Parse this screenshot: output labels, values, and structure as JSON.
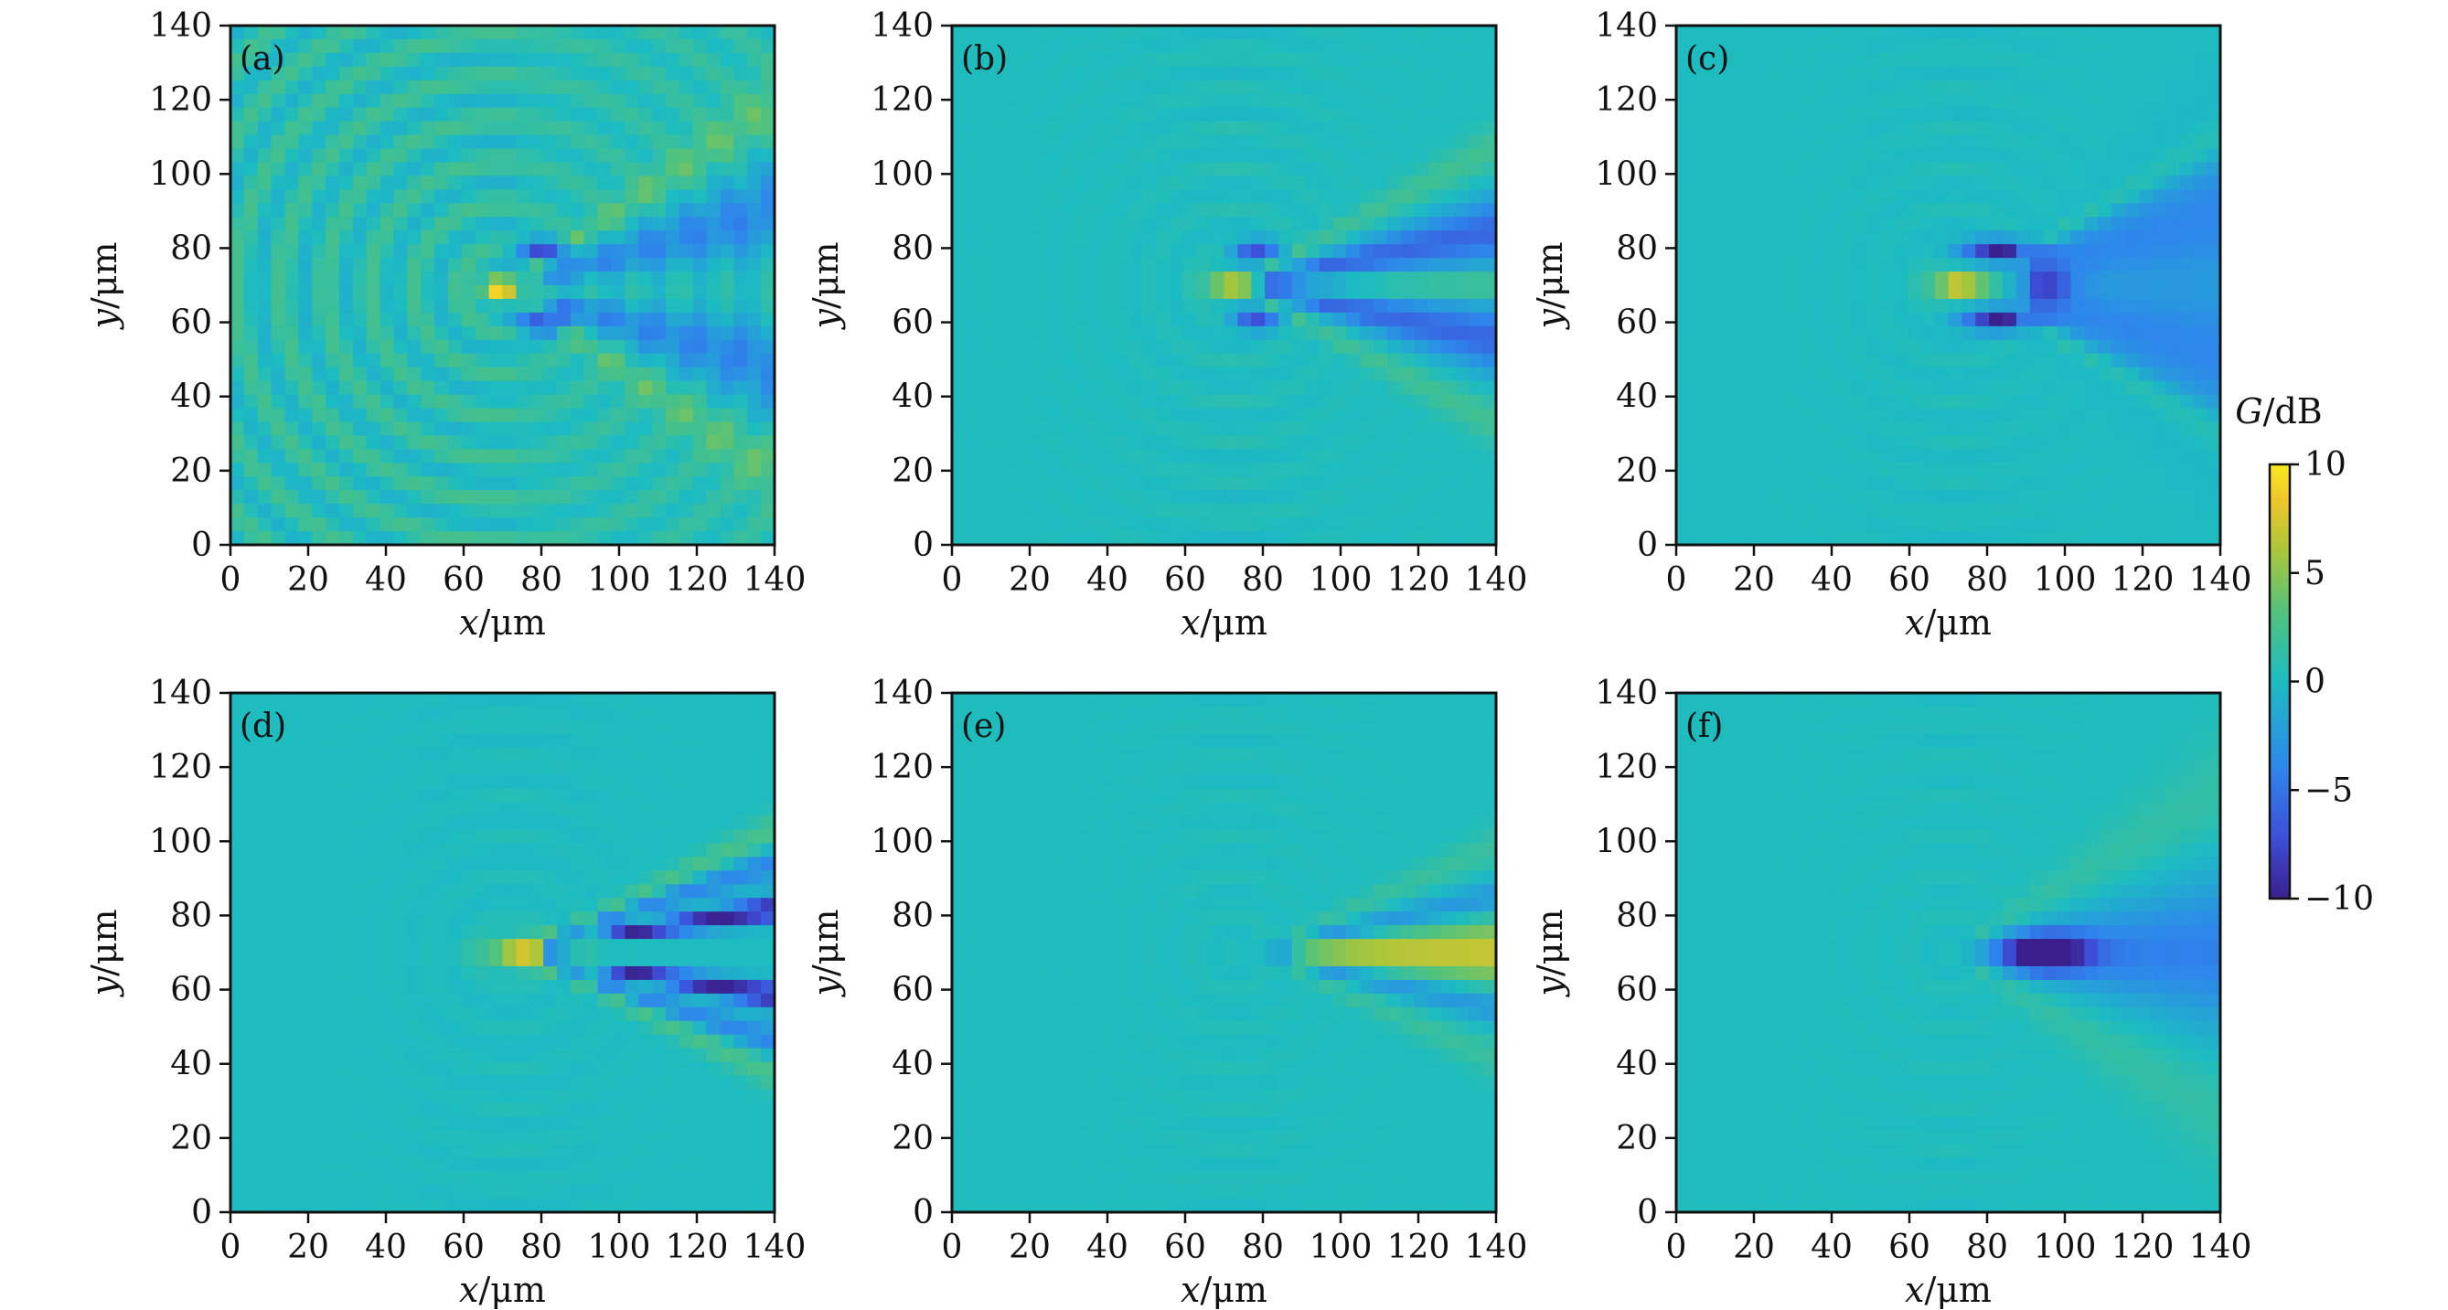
{
  "chart_data": [
    {
      "type": "heatmap",
      "panel_label": "(a)",
      "xlabel_var": "x",
      "xlabel_unit": "/μm",
      "ylabel_var": "y",
      "ylabel_unit": "/μm",
      "xlim": [
        0,
        140
      ],
      "ylim": [
        0,
        140
      ],
      "xticks": [
        "0",
        "20",
        "40",
        "60",
        "80",
        "100",
        "120",
        "140"
      ],
      "yticks": [
        "0",
        "20",
        "40",
        "60",
        "80",
        "100",
        "120",
        "140"
      ],
      "features": {
        "hot_spot": [
          68,
          69
        ],
        "hot_value_db": 8,
        "cold_lobes_db": -9,
        "fringes": "strong"
      }
    },
    {
      "type": "heatmap",
      "panel_label": "(b)",
      "xlabel_var": "x",
      "xlabel_unit": "/μm",
      "ylabel_var": "y",
      "ylabel_unit": "/μm",
      "xlim": [
        0,
        140
      ],
      "ylim": [
        0,
        140
      ],
      "xticks": [
        "0",
        "20",
        "40",
        "60",
        "80",
        "100",
        "120",
        "140"
      ],
      "yticks": [
        "0",
        "20",
        "40",
        "60",
        "80",
        "100",
        "120",
        "140"
      ],
      "features": {
        "hot_spot": [
          70,
          70
        ],
        "hot_value_db": 7,
        "cold_lobes_db": -8,
        "fringes": "weak"
      }
    },
    {
      "type": "heatmap",
      "panel_label": "(c)",
      "xlabel_var": "x",
      "xlabel_unit": "/μm",
      "ylabel_var": "y",
      "ylabel_unit": "/μm",
      "xlim": [
        0,
        140
      ],
      "ylim": [
        0,
        140
      ],
      "xticks": [
        "0",
        "20",
        "40",
        "60",
        "80",
        "100",
        "120",
        "140"
      ],
      "yticks": [
        "0",
        "20",
        "40",
        "60",
        "80",
        "100",
        "120",
        "140"
      ],
      "features": {
        "hot_spot": [
          73,
          70
        ],
        "hot_value_db": 8,
        "cold_lobes_db": -10,
        "fringes": "weak"
      }
    },
    {
      "type": "heatmap",
      "panel_label": "(d)",
      "xlabel_var": "x",
      "xlabel_unit": "/μm",
      "ylabel_var": "y",
      "ylabel_unit": "/μm",
      "xlim": [
        0,
        140
      ],
      "ylim": [
        0,
        140
      ],
      "xticks": [
        "0",
        "20",
        "40",
        "60",
        "80",
        "100",
        "120",
        "140"
      ],
      "yticks": [
        "0",
        "20",
        "40",
        "60",
        "80",
        "100",
        "120",
        "140"
      ],
      "features": {
        "hot_spot": [
          78,
          70
        ],
        "hot_value_db": 9,
        "cold_lobes_db": -10,
        "fringes": "weak"
      }
    },
    {
      "type": "heatmap",
      "panel_label": "(e)",
      "xlabel_var": "x",
      "xlabel_unit": "/μm",
      "ylabel_var": "y",
      "ylabel_unit": "/μm",
      "xlim": [
        0,
        140
      ],
      "ylim": [
        0,
        140
      ],
      "xticks": [
        "0",
        "20",
        "40",
        "60",
        "80",
        "100",
        "120",
        "140"
      ],
      "yticks": [
        "0",
        "20",
        "40",
        "60",
        "80",
        "100",
        "120",
        "140"
      ],
      "features": {
        "hot_spot": [
          110,
          70
        ],
        "hot_value_db": 7,
        "cold_lobes_db": -3,
        "fringes": "weak"
      }
    },
    {
      "type": "heatmap",
      "panel_label": "(f)",
      "xlabel_var": "x",
      "xlabel_unit": "/μm",
      "ylabel_var": "y",
      "ylabel_unit": "/μm",
      "xlim": [
        0,
        140
      ],
      "ylim": [
        0,
        140
      ],
      "xticks": [
        "0",
        "20",
        "40",
        "60",
        "80",
        "100",
        "120",
        "140"
      ],
      "yticks": [
        "0",
        "20",
        "40",
        "60",
        "80",
        "100",
        "120",
        "140"
      ],
      "features": {
        "cold_spot": [
          95,
          70
        ],
        "cold_value_db": -10,
        "fringes": "weak"
      }
    }
  ],
  "colorbar": {
    "label_var": "G",
    "label_unit": "/dB",
    "range": [
      -10,
      10
    ],
    "ticks": [
      "10",
      "5",
      "0",
      "−5",
      "−10"
    ],
    "colormap": [
      "#440154",
      "#3b2ca8",
      "#3b55e8",
      "#2c8ce8",
      "#1fb8c8",
      "#4cc28a",
      "#a8c83a",
      "#e6c02c",
      "#f9e81f"
    ]
  }
}
